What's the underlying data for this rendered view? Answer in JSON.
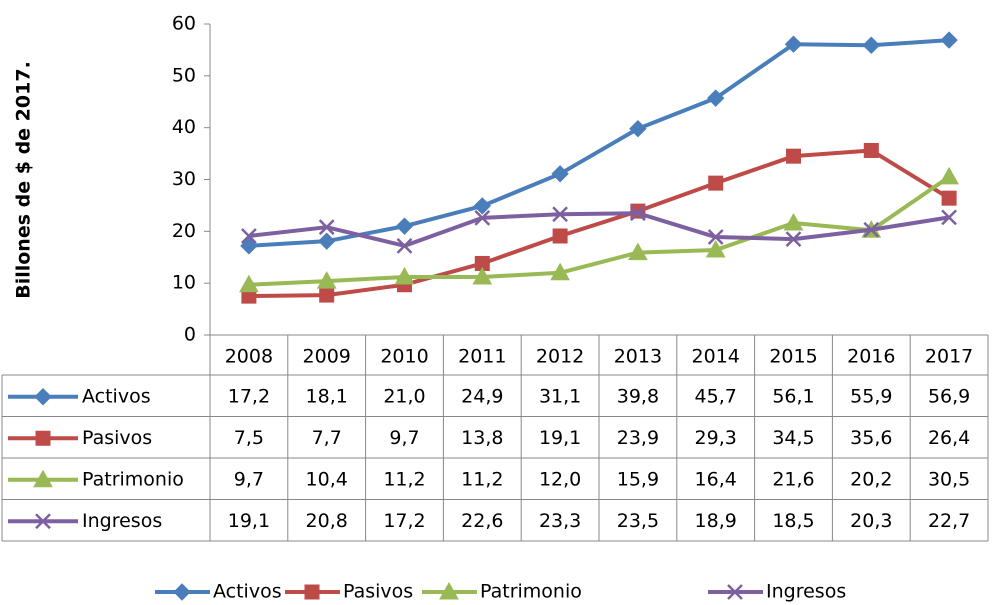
{
  "chart_data": {
    "type": "line",
    "y_label": "Billones de  $ de 2017.",
    "categories": [
      "2008",
      "2009",
      "2010",
      "2011",
      "2012",
      "2013",
      "2014",
      "2015",
      "2016",
      "2017"
    ],
    "series": [
      {
        "name": "Activos",
        "color": "#4a7ebb",
        "marker": "diamond",
        "values": [
          17.2,
          18.1,
          21.0,
          24.9,
          31.1,
          39.8,
          45.7,
          56.1,
          55.9,
          56.9
        ],
        "value_labels": [
          "17,2",
          "18,1",
          "21,0",
          "24,9",
          "31,1",
          "39,8",
          "45,7",
          "56,1",
          "55,9",
          "56,9"
        ]
      },
      {
        "name": "Pasivos",
        "color": "#be4b48",
        "marker": "square",
        "values": [
          7.5,
          7.7,
          9.7,
          13.8,
          19.1,
          23.9,
          29.3,
          34.5,
          35.6,
          26.4
        ],
        "value_labels": [
          "7,5",
          "7,7",
          "9,7",
          "13,8",
          "19,1",
          "23,9",
          "29,3",
          "34,5",
          "35,6",
          "26,4"
        ]
      },
      {
        "name": "Patrimonio",
        "color": "#98b954",
        "marker": "triangle",
        "values": [
          9.7,
          10.4,
          11.2,
          11.2,
          12.0,
          15.9,
          16.4,
          21.6,
          20.2,
          30.5
        ],
        "value_labels": [
          "9,7",
          "10,4",
          "11,2",
          "11,2",
          "12,0",
          "15,9",
          "16,4",
          "21,6",
          "20,2",
          "30,5"
        ]
      },
      {
        "name": "Ingresos",
        "color": "#7d60a0",
        "marker": "x",
        "values": [
          19.1,
          20.8,
          17.2,
          22.6,
          23.3,
          23.5,
          18.9,
          18.5,
          20.3,
          22.7
        ],
        "value_labels": [
          "19,1",
          "20,8",
          "17,2",
          "22,6",
          "23,3",
          "23,5",
          "18,9",
          "18,5",
          "20,3",
          "22,7"
        ]
      }
    ],
    "ylim": [
      0,
      60
    ],
    "yticks": [
      0,
      10,
      20,
      30,
      40,
      50,
      60
    ]
  }
}
